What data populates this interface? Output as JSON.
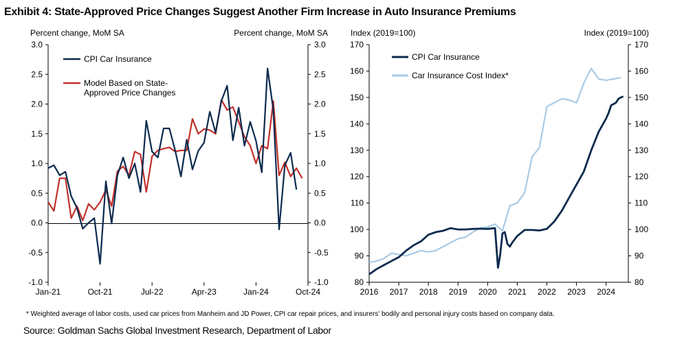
{
  "exhibit": {
    "title": "Exhibit 4: State-Approved Price Changes Suggest Another Firm Increase in Auto Insurance Premiums",
    "footnote": "* Weighted average of labor costs, used car prices from Manheim and JD Power, CPI car repair prices, and insurers' bodily and personal injury costs based on company data.",
    "source": "Source: Goldman Sachs Global Investment Research, Department of Labor"
  },
  "colors": {
    "navy": "#0b2a4e",
    "red": "#c0302b",
    "light_blue": "#a9cbe6",
    "axis": "#000000"
  },
  "chart_data": [
    {
      "type": "line",
      "ylabel_left": "Percent change, MoM SA",
      "ylabel_right": "Percent change, MoM SA",
      "ylim": [
        -1.0,
        3.0
      ],
      "yticks": [
        "3.0",
        "2.5",
        "2.0",
        "1.5",
        "1.0",
        "0.5",
        "0.0",
        "-0.5",
        "-1.0"
      ],
      "xticks": [
        "Jan-21",
        "Oct-21",
        "Jul-22",
        "Apr-23",
        "Jan-24",
        "Oct-24"
      ],
      "legend_position": "top-left",
      "series": [
        {
          "name": "CPI Car Insurance",
          "color": "#0b2a4e",
          "x": [
            "2021-01",
            "2021-02",
            "2021-03",
            "2021-04",
            "2021-05",
            "2021-06",
            "2021-07",
            "2021-08",
            "2021-09",
            "2021-10",
            "2021-11",
            "2021-12",
            "2022-01",
            "2022-02",
            "2022-03",
            "2022-04",
            "2022-05",
            "2022-06",
            "2022-07",
            "2022-08",
            "2022-09",
            "2022-10",
            "2022-11",
            "2022-12",
            "2023-01",
            "2023-02",
            "2023-03",
            "2023-04",
            "2023-05",
            "2023-06",
            "2023-07",
            "2023-08",
            "2023-09",
            "2023-10",
            "2023-11",
            "2023-12",
            "2024-01",
            "2024-02",
            "2024-03",
            "2024-04",
            "2024-05",
            "2024-06",
            "2024-07",
            "2024-08"
          ],
          "values": [
            0.92,
            0.97,
            0.8,
            0.86,
            0.45,
            0.25,
            -0.1,
            0.0,
            0.08,
            -0.69,
            0.7,
            -0.01,
            0.8,
            1.1,
            0.75,
            1.0,
            0.52,
            1.72,
            1.2,
            1.1,
            1.59,
            1.59,
            1.22,
            0.78,
            1.4,
            0.9,
            1.21,
            1.35,
            1.87,
            1.52,
            2.05,
            2.31,
            1.39,
            1.94,
            1.3,
            1.7,
            1.38,
            0.85,
            2.6,
            1.9,
            -0.11,
            0.97,
            1.18,
            0.56
          ]
        },
        {
          "name": "Model Based on State-Approved Price Changes",
          "legend_lines": [
            "Model Based on State-",
            "Approved Price Changes"
          ],
          "color": "#c0302b",
          "x": [
            "2021-01",
            "2021-02",
            "2021-03",
            "2021-04",
            "2021-05",
            "2021-06",
            "2021-07",
            "2021-08",
            "2021-09",
            "2021-10",
            "2021-11",
            "2021-12",
            "2022-01",
            "2022-02",
            "2022-03",
            "2022-04",
            "2022-05",
            "2022-06",
            "2022-07",
            "2022-08",
            "2022-09",
            "2022-10",
            "2022-11",
            "2022-12",
            "2023-01",
            "2023-02",
            "2023-03",
            "2023-04",
            "2023-05",
            "2023-06",
            "2023-07",
            "2023-08",
            "2023-09",
            "2023-10",
            "2023-11",
            "2023-12",
            "2024-01",
            "2024-02",
            "2024-03",
            "2024-04",
            "2024-05",
            "2024-06",
            "2024-07",
            "2024-08",
            "2024-09"
          ],
          "values": [
            0.35,
            0.2,
            0.75,
            0.75,
            0.08,
            0.28,
            0.04,
            0.32,
            0.22,
            0.35,
            0.55,
            0.28,
            0.87,
            0.95,
            0.8,
            1.2,
            1.15,
            0.52,
            1.12,
            1.22,
            1.25,
            1.27,
            1.2,
            1.22,
            1.22,
            1.75,
            1.5,
            1.58,
            1.56,
            1.5,
            2.07,
            1.9,
            1.95,
            1.7,
            1.45,
            1.3,
            1.0,
            1.3,
            1.25,
            2.05,
            0.8,
            1.02,
            0.78,
            0.92,
            0.75
          ]
        }
      ]
    },
    {
      "type": "line",
      "ylabel_left": "Index (2019=100)",
      "ylabel_right": "Index (2019=100)",
      "ylim": [
        80,
        170
      ],
      "yticks": [
        "170",
        "160",
        "150",
        "140",
        "130",
        "120",
        "110",
        "100",
        "90",
        "80"
      ],
      "xticks": [
        "2016",
        "2017",
        "2018",
        "2019",
        "2020",
        "2021",
        "2022",
        "2023",
        "2024"
      ],
      "legend_position": "top-left",
      "series": [
        {
          "name": "CPI Car Insurance",
          "color": "#0b2a4e",
          "x": [
            2016.0,
            2016.25,
            2016.5,
            2016.75,
            2017.0,
            2017.25,
            2017.5,
            2017.75,
            2018.0,
            2018.25,
            2018.5,
            2018.75,
            2019.0,
            2019.25,
            2019.5,
            2019.75,
            2020.0,
            2020.25,
            2020.35,
            2020.42,
            2020.5,
            2020.58,
            2020.67,
            2020.75,
            2020.83,
            2021.0,
            2021.25,
            2021.5,
            2021.75,
            2022.0,
            2022.25,
            2022.5,
            2022.75,
            2023.0,
            2023.25,
            2023.5,
            2023.75,
            2024.0,
            2024.08,
            2024.17,
            2024.25,
            2024.33,
            2024.42,
            2024.5,
            2024.58
          ],
          "values": [
            83,
            85,
            86.5,
            88,
            89.5,
            92,
            94,
            95.5,
            98,
            99,
            99.5,
            100.5,
            100,
            100,
            100.2,
            100.3,
            100.2,
            100.5,
            85.5,
            90,
            98.5,
            99,
            94.5,
            93.5,
            95,
            97.5,
            99.8,
            99.8,
            99.6,
            100.2,
            103,
            107,
            112,
            117,
            122,
            130,
            137,
            142,
            144,
            147,
            147.5,
            148,
            149.5,
            150,
            150.4
          ]
        },
        {
          "name": "Car Insurance Cost Index*",
          "color": "#a9cbe6",
          "x": [
            2016.0,
            2016.25,
            2016.5,
            2016.75,
            2017.0,
            2017.25,
            2017.5,
            2017.75,
            2018.0,
            2018.25,
            2018.5,
            2018.75,
            2019.0,
            2019.25,
            2019.5,
            2019.75,
            2020.0,
            2020.25,
            2020.5,
            2020.75,
            2021.0,
            2021.25,
            2021.5,
            2021.75,
            2022.0,
            2022.25,
            2022.5,
            2022.75,
            2023.0,
            2023.25,
            2023.5,
            2023.75,
            2024.0,
            2024.25,
            2024.5
          ],
          "values": [
            87.5,
            88,
            89,
            91,
            90.5,
            90,
            91,
            92,
            91.5,
            92,
            93.5,
            95,
            96.5,
            97,
            99,
            100.5,
            101,
            102,
            99.5,
            109,
            110,
            114,
            127.5,
            131,
            146.5,
            148,
            149.5,
            149,
            148,
            155.5,
            161,
            157,
            156.5,
            157,
            157.5
          ]
        }
      ]
    }
  ]
}
